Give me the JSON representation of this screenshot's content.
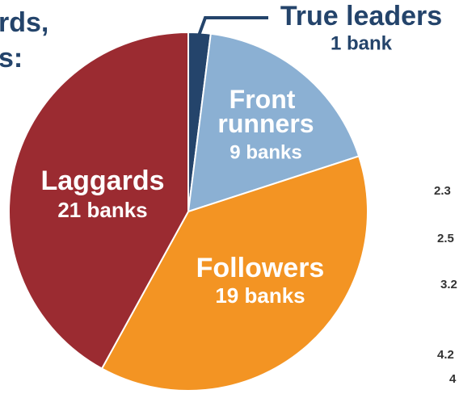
{
  "chart_data": {
    "type": "pie",
    "title_lines": [
      "rds,",
      "s:"
    ],
    "categories": [
      "True leaders",
      "Front runners",
      "Followers",
      "Laggards"
    ],
    "values": [
      1,
      9,
      19,
      21
    ],
    "value_labels": [
      "1 bank",
      "9 banks",
      "19 banks",
      "21 banks"
    ],
    "colors": [
      "#24446b",
      "#8bb0d3",
      "#f39423",
      "#9b2b31"
    ],
    "side_labels": [
      "2.3",
      "2.5",
      "3.2",
      "4.2",
      "4"
    ]
  }
}
